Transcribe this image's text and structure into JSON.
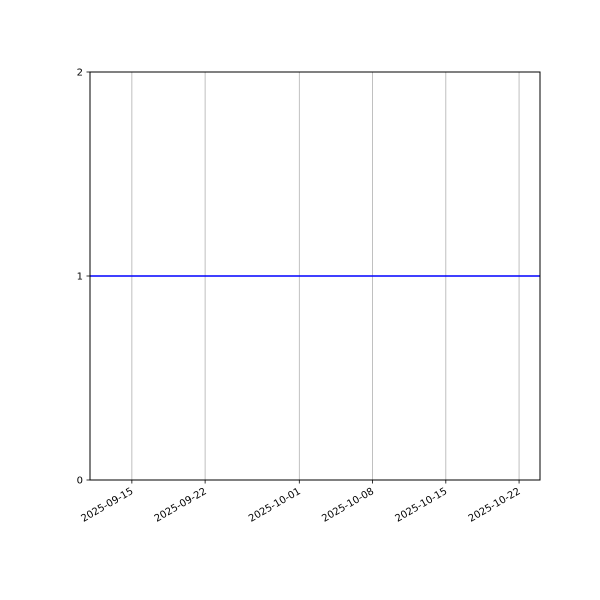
{
  "chart_data": {
    "type": "line",
    "title": "",
    "xlabel": "",
    "ylabel": "",
    "xlim": [
      "2025-09-11",
      "2025-10-24"
    ],
    "ylim": [
      0,
      2
    ],
    "x_ticks": [
      "2025-09-15",
      "2025-09-22",
      "2025-10-01",
      "2025-10-08",
      "2025-10-15",
      "2025-10-22"
    ],
    "y_ticks": [
      "0",
      "1",
      "2"
    ],
    "grid": "x-axis vertical lines",
    "series": [
      {
        "x": [
          "2025-09-11",
          "2025-10-24"
        ],
        "y": [
          1,
          1
        ],
        "color": "#0000ff"
      }
    ],
    "colors": {
      "grid": "#b0b0b0",
      "line": "#0000ff"
    }
  }
}
